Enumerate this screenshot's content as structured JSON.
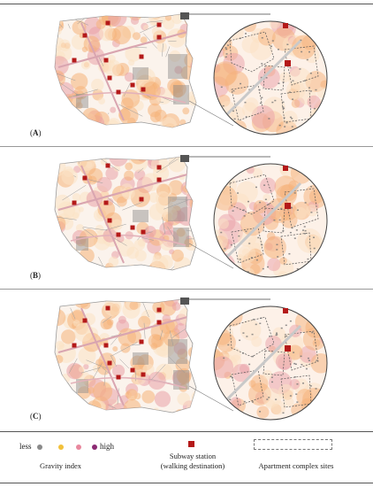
{
  "panels": [
    {
      "label": "A"
    },
    {
      "label": "B"
    },
    {
      "label": "C"
    }
  ],
  "legend": {
    "less": "less",
    "high": "high",
    "gravity_index": "Gravity index",
    "subway_line1": "Subway station",
    "subway_line2": "(walking destination)",
    "apartment": "Apartment complex sites"
  },
  "colors": {
    "gray": "#8a8a8a",
    "yellow": "#f2c13a",
    "pink": "#e9889e",
    "purple": "#8c2a73",
    "station": "#b41919",
    "heat_light": "#fbe2c4",
    "heat_orange": "#f5b27a",
    "heat_pink": "#eaa0a8"
  }
}
